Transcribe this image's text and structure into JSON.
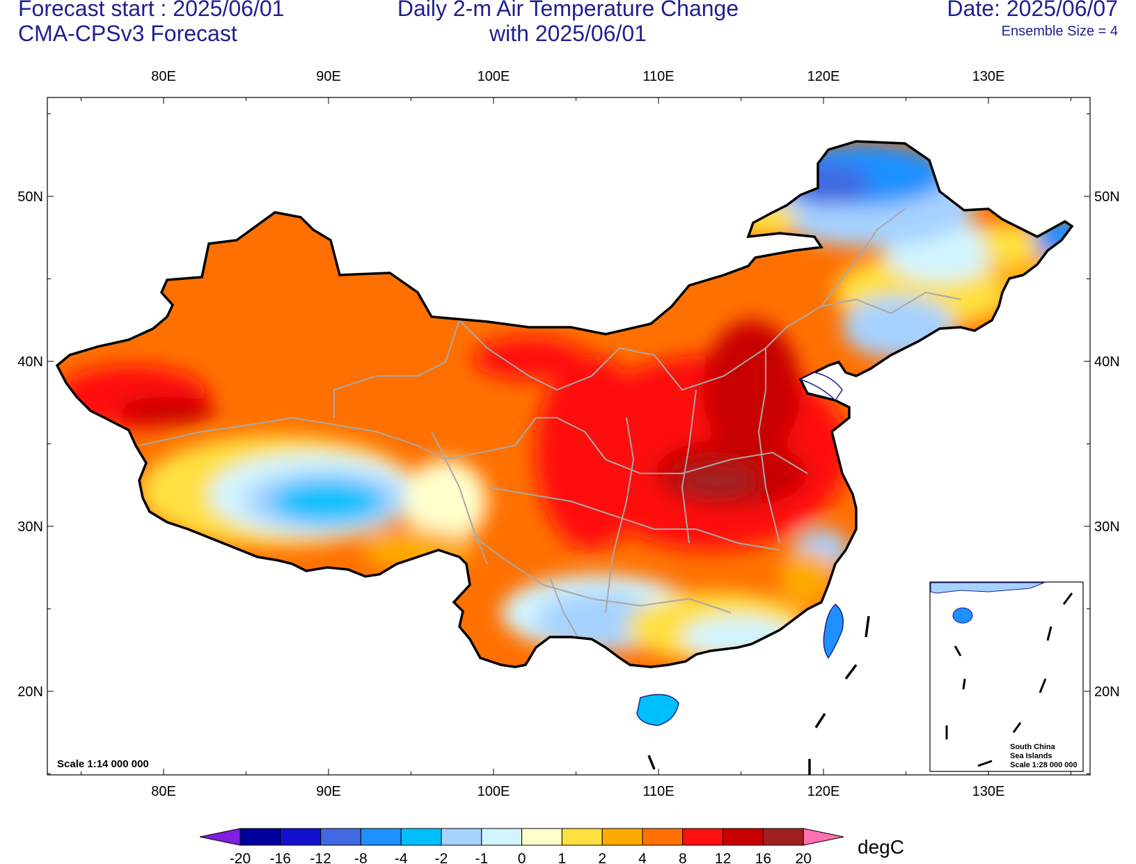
{
  "header": {
    "forecast_start": "Forecast start : 2025/06/01",
    "model": "CMA-CPSv3 Forecast",
    "title_line1": "Daily 2-m Air Temperature Change",
    "title_line2": "with 2025/06/01",
    "date": "Date: 2025/06/07",
    "ensemble": "Ensemble Size = 4"
  },
  "axes": {
    "lon_labels": [
      "80E",
      "90E",
      "100E",
      "110E",
      "120E",
      "130E"
    ],
    "lat_labels": [
      "50N",
      "40N",
      "30N",
      "20N"
    ]
  },
  "map": {
    "scale": "Scale 1:14 000 000",
    "inset_lines": [
      "South China",
      "Sea Islands",
      "Scale 1:28 000 000"
    ]
  },
  "colorbar": {
    "labels": [
      "-20",
      "-16",
      "-12",
      "-8",
      "-4",
      "-2",
      "-1",
      "0",
      "1",
      "2",
      "4",
      "8",
      "12",
      "16",
      "20"
    ],
    "colors": [
      "#7f1fdf",
      "#00009f",
      "#1111cf",
      "#4169e1",
      "#1e90ff",
      "#00bfff",
      "#a6d2ff",
      "#d2f5ff",
      "#ffffcc",
      "#ffe040",
      "#ffaa00",
      "#ff7000",
      "#ff1010",
      "#c80000",
      "#a02020",
      "#ff70b0"
    ],
    "unit": "degC"
  },
  "colors": {
    "text": "#1f1f8f",
    "border": "#000000",
    "province": "#a8a8a8",
    "coast": "#1f1f8f"
  }
}
